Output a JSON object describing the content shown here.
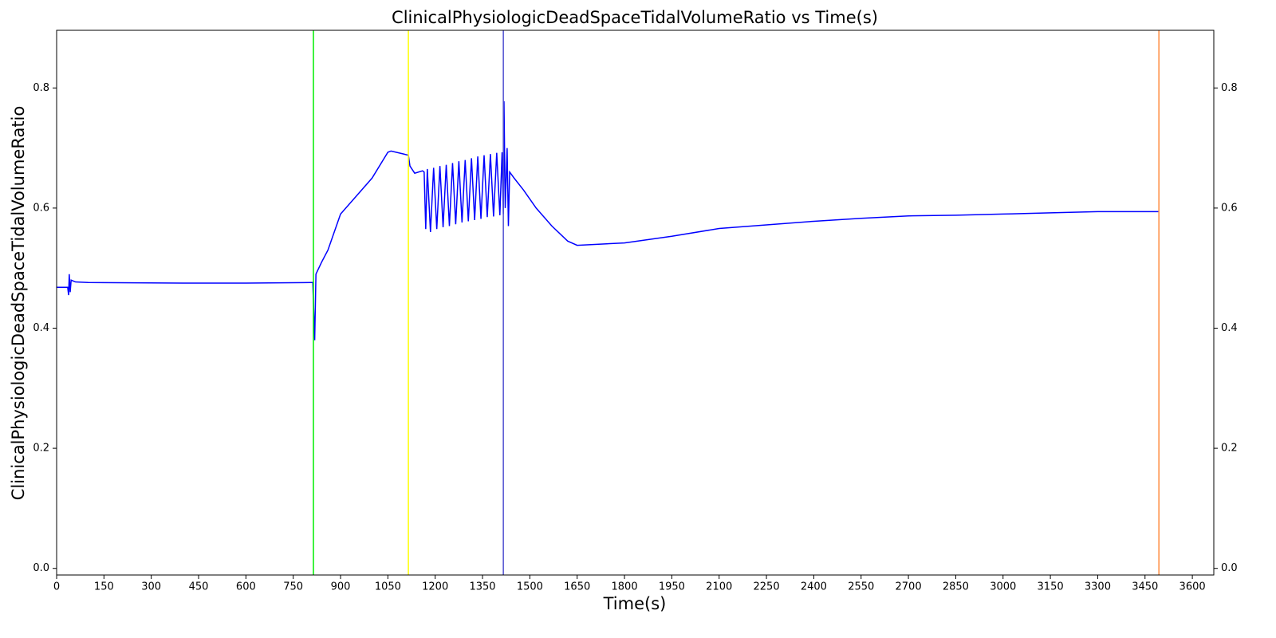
{
  "chart_data": {
    "type": "line",
    "title": "ClinicalPhysiologicDeadSpaceTidalVolumeRatio vs Time(s)",
    "xlabel": "Time(s)",
    "ylabel": "ClinicalPhysiologicDeadSpaceTidalVolumeRatio",
    "color": "#0000ff",
    "x": [
      0,
      35,
      38,
      40,
      43,
      46,
      60,
      100,
      400,
      600,
      810,
      812,
      818,
      822,
      840,
      860,
      880,
      900,
      950,
      1000,
      1050,
      1060,
      1100,
      1115,
      1120,
      1135,
      1160,
      1165,
      1170,
      1175,
      1185,
      1195,
      1205,
      1215,
      1225,
      1235,
      1245,
      1255,
      1265,
      1275,
      1285,
      1295,
      1305,
      1315,
      1325,
      1335,
      1345,
      1355,
      1365,
      1375,
      1385,
      1395,
      1405,
      1412,
      1416,
      1418,
      1422,
      1428,
      1432,
      1436,
      1450,
      1480,
      1520,
      1570,
      1620,
      1650,
      1800,
      1950,
      2100,
      2250,
      2400,
      2550,
      2700,
      2850,
      3000,
      3150,
      3300,
      3494
    ],
    "values": [
      0.468,
      0.468,
      0.455,
      0.49,
      0.46,
      0.48,
      0.477,
      0.476,
      0.475,
      0.475,
      0.476,
      0.476,
      0.38,
      0.49,
      0.51,
      0.53,
      0.56,
      0.59,
      0.62,
      0.65,
      0.693,
      0.695,
      0.69,
      0.688,
      0.67,
      0.658,
      0.662,
      0.66,
      0.565,
      0.665,
      0.56,
      0.667,
      0.565,
      0.67,
      0.568,
      0.672,
      0.57,
      0.675,
      0.573,
      0.678,
      0.576,
      0.68,
      0.578,
      0.683,
      0.58,
      0.686,
      0.582,
      0.688,
      0.585,
      0.69,
      0.586,
      0.692,
      0.588,
      0.693,
      0.59,
      0.778,
      0.6,
      0.7,
      0.57,
      0.66,
      0.65,
      0.63,
      0.6,
      0.57,
      0.545,
      0.538,
      0.542,
      0.553,
      0.566,
      0.572,
      0.578,
      0.583,
      0.587,
      0.588,
      0.59,
      0.592,
      0.594,
      0.594
    ],
    "markers": [
      {
        "x": 814,
        "color": "#00ee00"
      },
      {
        "x": 1115,
        "color": "#ffff00"
      },
      {
        "x": 1416,
        "color": "#5050d0"
      },
      {
        "x": 3494,
        "color": "#ff8c40"
      }
    ],
    "xlim": [
      0,
      3668
    ],
    "ylim": [
      -0.011,
      0.896
    ],
    "y2lim": [
      -0.011,
      0.896
    ],
    "xticks": [
      0,
      150,
      300,
      450,
      600,
      750,
      900,
      1050,
      1200,
      1350,
      1500,
      1650,
      1800,
      1950,
      2100,
      2250,
      2400,
      2550,
      2700,
      2850,
      3000,
      3150,
      3300,
      3450,
      3600
    ],
    "yticks": [
      {
        "value": 0,
        "label": "0.0"
      },
      0.2,
      0.4,
      0.6,
      0.8
    ],
    "y2ticks": [
      {
        "value": 0,
        "label": "0.0"
      },
      0.2,
      0.4,
      0.6,
      0.8
    ]
  }
}
